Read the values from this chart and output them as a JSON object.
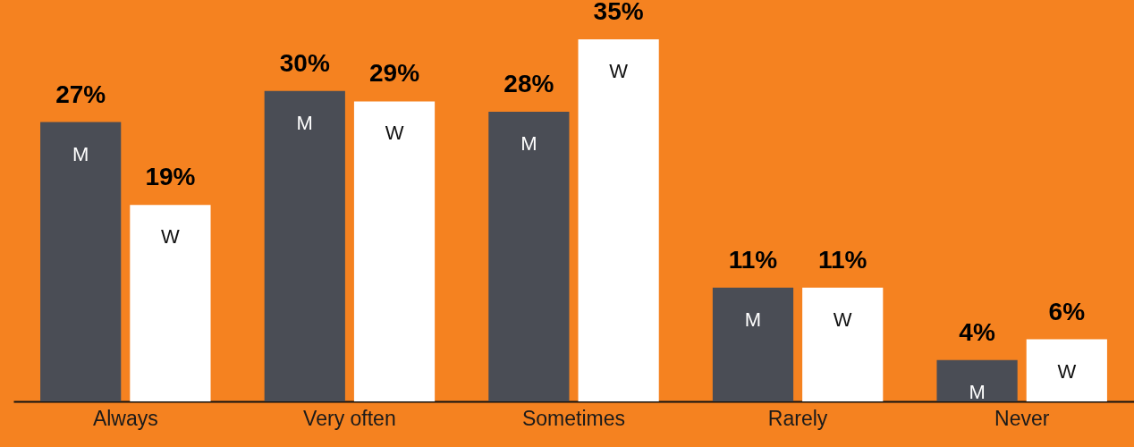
{
  "chart_data": {
    "type": "bar",
    "categories": [
      "Always",
      "Very often",
      "Sometimes",
      "Rarely",
      "Never"
    ],
    "series": [
      {
        "name": "M",
        "color": "#4a4d55",
        "values": [
          27,
          30,
          28,
          11,
          4
        ],
        "value_labels": [
          "27%",
          "30%",
          "28%",
          "11%",
          "4%"
        ]
      },
      {
        "name": "W",
        "color": "#ffffff",
        "values": [
          19,
          29,
          35,
          11,
          6
        ],
        "value_labels": [
          "19%",
          "29%",
          "35%",
          "11%",
          "6%"
        ]
      }
    ]
  }
}
